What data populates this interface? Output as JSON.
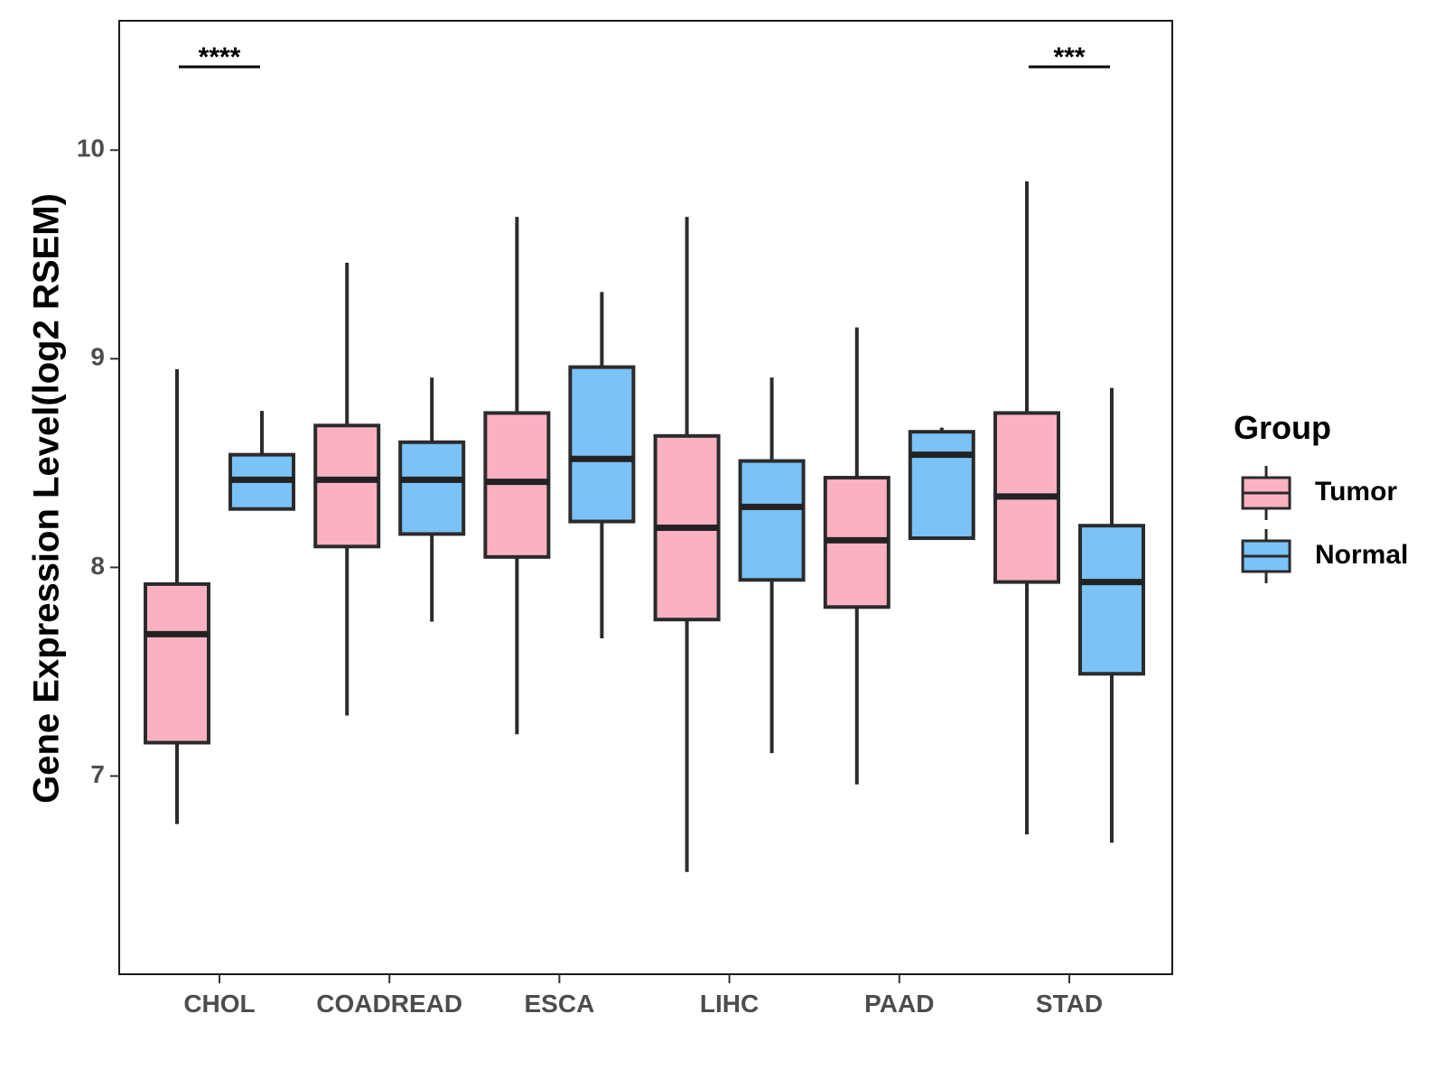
{
  "chart_data": {
    "type": "boxplot",
    "title": "",
    "xlabel": "",
    "ylabel": "Gene Expression Level(log2 RSEM)",
    "ylim": [
      6.05,
      10.62
    ],
    "yticks": [
      7,
      8,
      9,
      10
    ],
    "ytick_labels": [
      "7",
      "8",
      "9",
      "10"
    ],
    "grid": false,
    "legend": {
      "title": "Group",
      "position": "right",
      "entries": [
        {
          "name": "Tumor",
          "color": "#FAB2C3"
        },
        {
          "name": "Normal",
          "color": "#7AC2F8"
        }
      ]
    },
    "categories": [
      "CHOL",
      "COADREAD",
      "ESCA",
      "LIHC",
      "PAAD",
      "STAD"
    ],
    "series": [
      {
        "name": "Tumor",
        "color": "#FAB2C3",
        "boxes": [
          {
            "min": 6.77,
            "q1": 7.16,
            "median": 7.68,
            "q3": 7.92,
            "max": 8.95
          },
          {
            "min": 7.29,
            "q1": 8.1,
            "median": 8.42,
            "q3": 8.68,
            "max": 9.46
          },
          {
            "min": 7.2,
            "q1": 8.05,
            "median": 8.41,
            "q3": 8.74,
            "max": 9.68
          },
          {
            "min": 6.54,
            "q1": 7.75,
            "median": 8.19,
            "q3": 8.63,
            "max": 9.68
          },
          {
            "min": 6.96,
            "q1": 7.81,
            "median": 8.13,
            "q3": 8.43,
            "max": 9.15
          },
          {
            "min": 6.72,
            "q1": 7.93,
            "median": 8.34,
            "q3": 8.74,
            "max": 9.85
          }
        ]
      },
      {
        "name": "Normal",
        "color": "#7AC2F8",
        "boxes": [
          {
            "min": 8.28,
            "q1": 8.28,
            "median": 8.42,
            "q3": 8.54,
            "max": 8.75
          },
          {
            "min": 7.74,
            "q1": 8.16,
            "median": 8.42,
            "q3": 8.6,
            "max": 8.91
          },
          {
            "min": 7.66,
            "q1": 8.22,
            "median": 8.52,
            "q3": 8.96,
            "max": 9.32
          },
          {
            "min": 7.11,
            "q1": 7.94,
            "median": 8.29,
            "q3": 8.51,
            "max": 8.91
          },
          {
            "min": 8.14,
            "q1": 8.14,
            "median": 8.54,
            "q3": 8.65,
            "max": 8.67
          },
          {
            "min": 6.68,
            "q1": 7.49,
            "median": 7.93,
            "q3": 8.2,
            "max": 8.86
          }
        ]
      }
    ],
    "annotations": [
      {
        "category": "CHOL",
        "label": "****"
      },
      {
        "category": "STAD",
        "label": "***"
      }
    ]
  }
}
